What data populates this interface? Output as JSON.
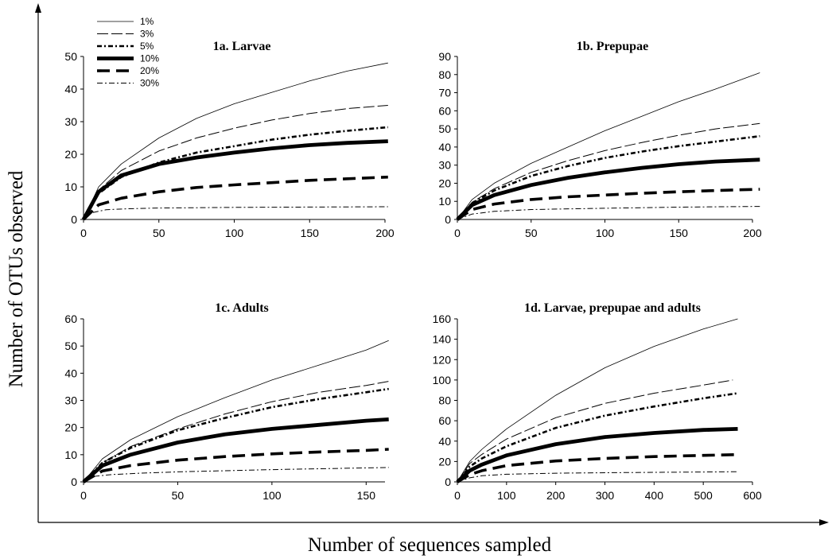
{
  "figure": {
    "ylabel": "Number of OTUs observed",
    "xlabel": "Number of sequences sampled",
    "legend": [
      {
        "label": "1%",
        "style": "thin"
      },
      {
        "label": "3%",
        "style": "longdash"
      },
      {
        "label": "5%",
        "style": "dash"
      },
      {
        "label": "10%",
        "style": "thick"
      },
      {
        "label": "20%",
        "style": "thickdash"
      },
      {
        "label": "30%",
        "style": "dashdot"
      }
    ]
  },
  "chart_data": [
    {
      "type": "line",
      "title": "1a. Larvae",
      "xlim": [
        0,
        200
      ],
      "ylim": [
        0,
        50
      ],
      "xticks": [
        0,
        50,
        100,
        150,
        200
      ],
      "yticks": [
        0,
        10,
        20,
        30,
        40,
        50
      ],
      "series": [
        {
          "name": "1%",
          "style": "thin",
          "x": [
            0,
            10,
            25,
            50,
            75,
            100,
            125,
            150,
            175,
            202
          ],
          "y": [
            0,
            10,
            17,
            25,
            31,
            35.5,
            39,
            42.5,
            45.5,
            48
          ]
        },
        {
          "name": "3%",
          "style": "longdash",
          "x": [
            0,
            10,
            25,
            50,
            75,
            100,
            125,
            150,
            175,
            202
          ],
          "y": [
            0,
            9,
            15,
            21,
            25,
            28,
            30.5,
            32.5,
            34,
            35
          ]
        },
        {
          "name": "5%",
          "style": "dash",
          "x": [
            0,
            10,
            25,
            50,
            75,
            100,
            125,
            150,
            175,
            202
          ],
          "y": [
            0,
            8,
            13,
            17.5,
            20.5,
            22.5,
            24.5,
            26,
            27.2,
            28.3
          ]
        },
        {
          "name": "10%",
          "style": "thick",
          "x": [
            0,
            10,
            25,
            50,
            75,
            100,
            125,
            150,
            175,
            202
          ],
          "y": [
            0,
            8.5,
            13.5,
            17,
            19,
            20.5,
            21.8,
            22.8,
            23.5,
            24
          ]
        },
        {
          "name": "20%",
          "style": "thickdash",
          "x": [
            0,
            10,
            25,
            50,
            75,
            100,
            125,
            150,
            175,
            202
          ],
          "y": [
            0,
            4.5,
            6.5,
            8.5,
            9.8,
            10.6,
            11.3,
            12,
            12.5,
            13
          ]
        },
        {
          "name": "30%",
          "style": "dashdot",
          "x": [
            0,
            5,
            15,
            30,
            50,
            100,
            150,
            202
          ],
          "y": [
            0,
            2,
            3,
            3.3,
            3.5,
            3.7,
            3.8,
            3.9
          ]
        }
      ]
    },
    {
      "type": "line",
      "title": "1b. Prepupae",
      "xlim": [
        0,
        200
      ],
      "ylim": [
        0,
        90
      ],
      "xticks": [
        0,
        50,
        100,
        150,
        200
      ],
      "yticks": [
        0,
        10,
        20,
        30,
        40,
        50,
        60,
        70,
        80,
        90
      ],
      "series": [
        {
          "name": "1%",
          "style": "thin",
          "x": [
            0,
            10,
            25,
            50,
            75,
            100,
            125,
            150,
            175,
            205
          ],
          "y": [
            0,
            11,
            20,
            31,
            40,
            49,
            57,
            65,
            72,
            81
          ]
        },
        {
          "name": "3%",
          "style": "longdash",
          "x": [
            0,
            10,
            25,
            50,
            75,
            100,
            125,
            150,
            175,
            205
          ],
          "y": [
            0,
            9.5,
            17,
            26,
            32.5,
            38,
            42.5,
            46.5,
            50,
            53
          ]
        },
        {
          "name": "5%",
          "style": "dash",
          "x": [
            0,
            10,
            25,
            50,
            75,
            100,
            125,
            150,
            175,
            205
          ],
          "y": [
            0,
            9,
            16,
            24,
            29.5,
            34,
            37.5,
            40.5,
            43,
            46
          ]
        },
        {
          "name": "10%",
          "style": "thick",
          "x": [
            0,
            10,
            25,
            50,
            75,
            100,
            125,
            150,
            175,
            205
          ],
          "y": [
            0,
            8,
            13.5,
            19,
            23,
            26,
            28.5,
            30.5,
            32,
            33
          ]
        },
        {
          "name": "20%",
          "style": "thickdash",
          "x": [
            0,
            10,
            25,
            50,
            75,
            100,
            125,
            150,
            175,
            205
          ],
          "y": [
            0,
            5.5,
            8.5,
            11,
            12.5,
            13.5,
            14.5,
            15.3,
            16,
            16.7
          ]
        },
        {
          "name": "30%",
          "style": "dashdot",
          "x": [
            0,
            10,
            25,
            50,
            100,
            150,
            205
          ],
          "y": [
            0,
            3,
            4.5,
            5.5,
            6.2,
            6.8,
            7.2
          ]
        }
      ]
    },
    {
      "type": "line",
      "title": "1c. Adults",
      "xlim": [
        0,
        160
      ],
      "ylim": [
        0,
        60
      ],
      "xticks": [
        0,
        50,
        100,
        150
      ],
      "yticks": [
        0,
        10,
        20,
        30,
        40,
        50,
        60
      ],
      "series": [
        {
          "name": "1%",
          "style": "thin",
          "x": [
            0,
            10,
            25,
            50,
            75,
            100,
            125,
            150,
            162
          ],
          "y": [
            0,
            8.5,
            15.5,
            24,
            31,
            37.5,
            43,
            48.5,
            52
          ]
        },
        {
          "name": "3%",
          "style": "longdash",
          "x": [
            0,
            10,
            25,
            50,
            75,
            100,
            125,
            150,
            162
          ],
          "y": [
            0,
            7,
            13,
            19.5,
            25,
            29.5,
            33,
            35.5,
            37
          ]
        },
        {
          "name": "5%",
          "style": "dash",
          "x": [
            0,
            10,
            25,
            50,
            75,
            100,
            125,
            150,
            162
          ],
          "y": [
            0,
            7,
            12.5,
            19,
            23.5,
            27.5,
            30.5,
            33,
            34.2
          ]
        },
        {
          "name": "10%",
          "style": "thick",
          "x": [
            0,
            10,
            25,
            50,
            75,
            100,
            125,
            150,
            162
          ],
          "y": [
            0,
            6,
            10,
            14.5,
            17.5,
            19.5,
            21,
            22.5,
            23
          ]
        },
        {
          "name": "20%",
          "style": "thickdash",
          "x": [
            0,
            10,
            25,
            50,
            75,
            100,
            125,
            150,
            162
          ],
          "y": [
            0,
            4,
            6,
            8,
            9.3,
            10.3,
            11,
            11.6,
            12
          ]
        },
        {
          "name": "30%",
          "style": "dashdot",
          "x": [
            0,
            5,
            15,
            30,
            50,
            100,
            162
          ],
          "y": [
            0,
            2,
            2.7,
            3.2,
            3.7,
            4.5,
            5.3
          ]
        }
      ]
    },
    {
      "type": "line",
      "title": "1d. Larvae, prepupae and adults",
      "xlim": [
        0,
        600
      ],
      "ylim": [
        0,
        160
      ],
      "xticks": [
        0,
        100,
        200,
        300,
        400,
        500,
        600
      ],
      "yticks": [
        0,
        20,
        40,
        60,
        80,
        100,
        120,
        140,
        160
      ],
      "series": [
        {
          "name": "1%",
          "style": "thin",
          "x": [
            0,
            25,
            50,
            100,
            200,
            300,
            400,
            500,
            570
          ],
          "y": [
            0,
            20,
            32,
            52,
            85,
            112,
            133,
            150,
            160
          ]
        },
        {
          "name": "3%",
          "style": "longdash",
          "x": [
            0,
            25,
            50,
            100,
            200,
            300,
            400,
            500,
            560
          ],
          "y": [
            0,
            18,
            27,
            42,
            63,
            77,
            87,
            95,
            100
          ]
        },
        {
          "name": "5%",
          "style": "dash",
          "x": [
            0,
            25,
            50,
            100,
            200,
            300,
            400,
            500,
            570
          ],
          "y": [
            0,
            15,
            23,
            35,
            53,
            65,
            74,
            82,
            87
          ]
        },
        {
          "name": "10%",
          "style": "thick",
          "x": [
            0,
            25,
            50,
            100,
            200,
            300,
            400,
            500,
            570
          ],
          "y": [
            0,
            11,
            17,
            26,
            37,
            44,
            48,
            51,
            52
          ]
        },
        {
          "name": "20%",
          "style": "thickdash",
          "x": [
            0,
            25,
            50,
            100,
            200,
            300,
            400,
            500,
            570
          ],
          "y": [
            0,
            7,
            11,
            16,
            20.5,
            23,
            24.8,
            26,
            26.8
          ]
        },
        {
          "name": "30%",
          "style": "dashdot",
          "x": [
            0,
            25,
            50,
            100,
            200,
            300,
            400,
            500,
            570
          ],
          "y": [
            0,
            4,
            6,
            7.5,
            8.5,
            9,
            9.4,
            9.7,
            10
          ]
        }
      ]
    }
  ]
}
